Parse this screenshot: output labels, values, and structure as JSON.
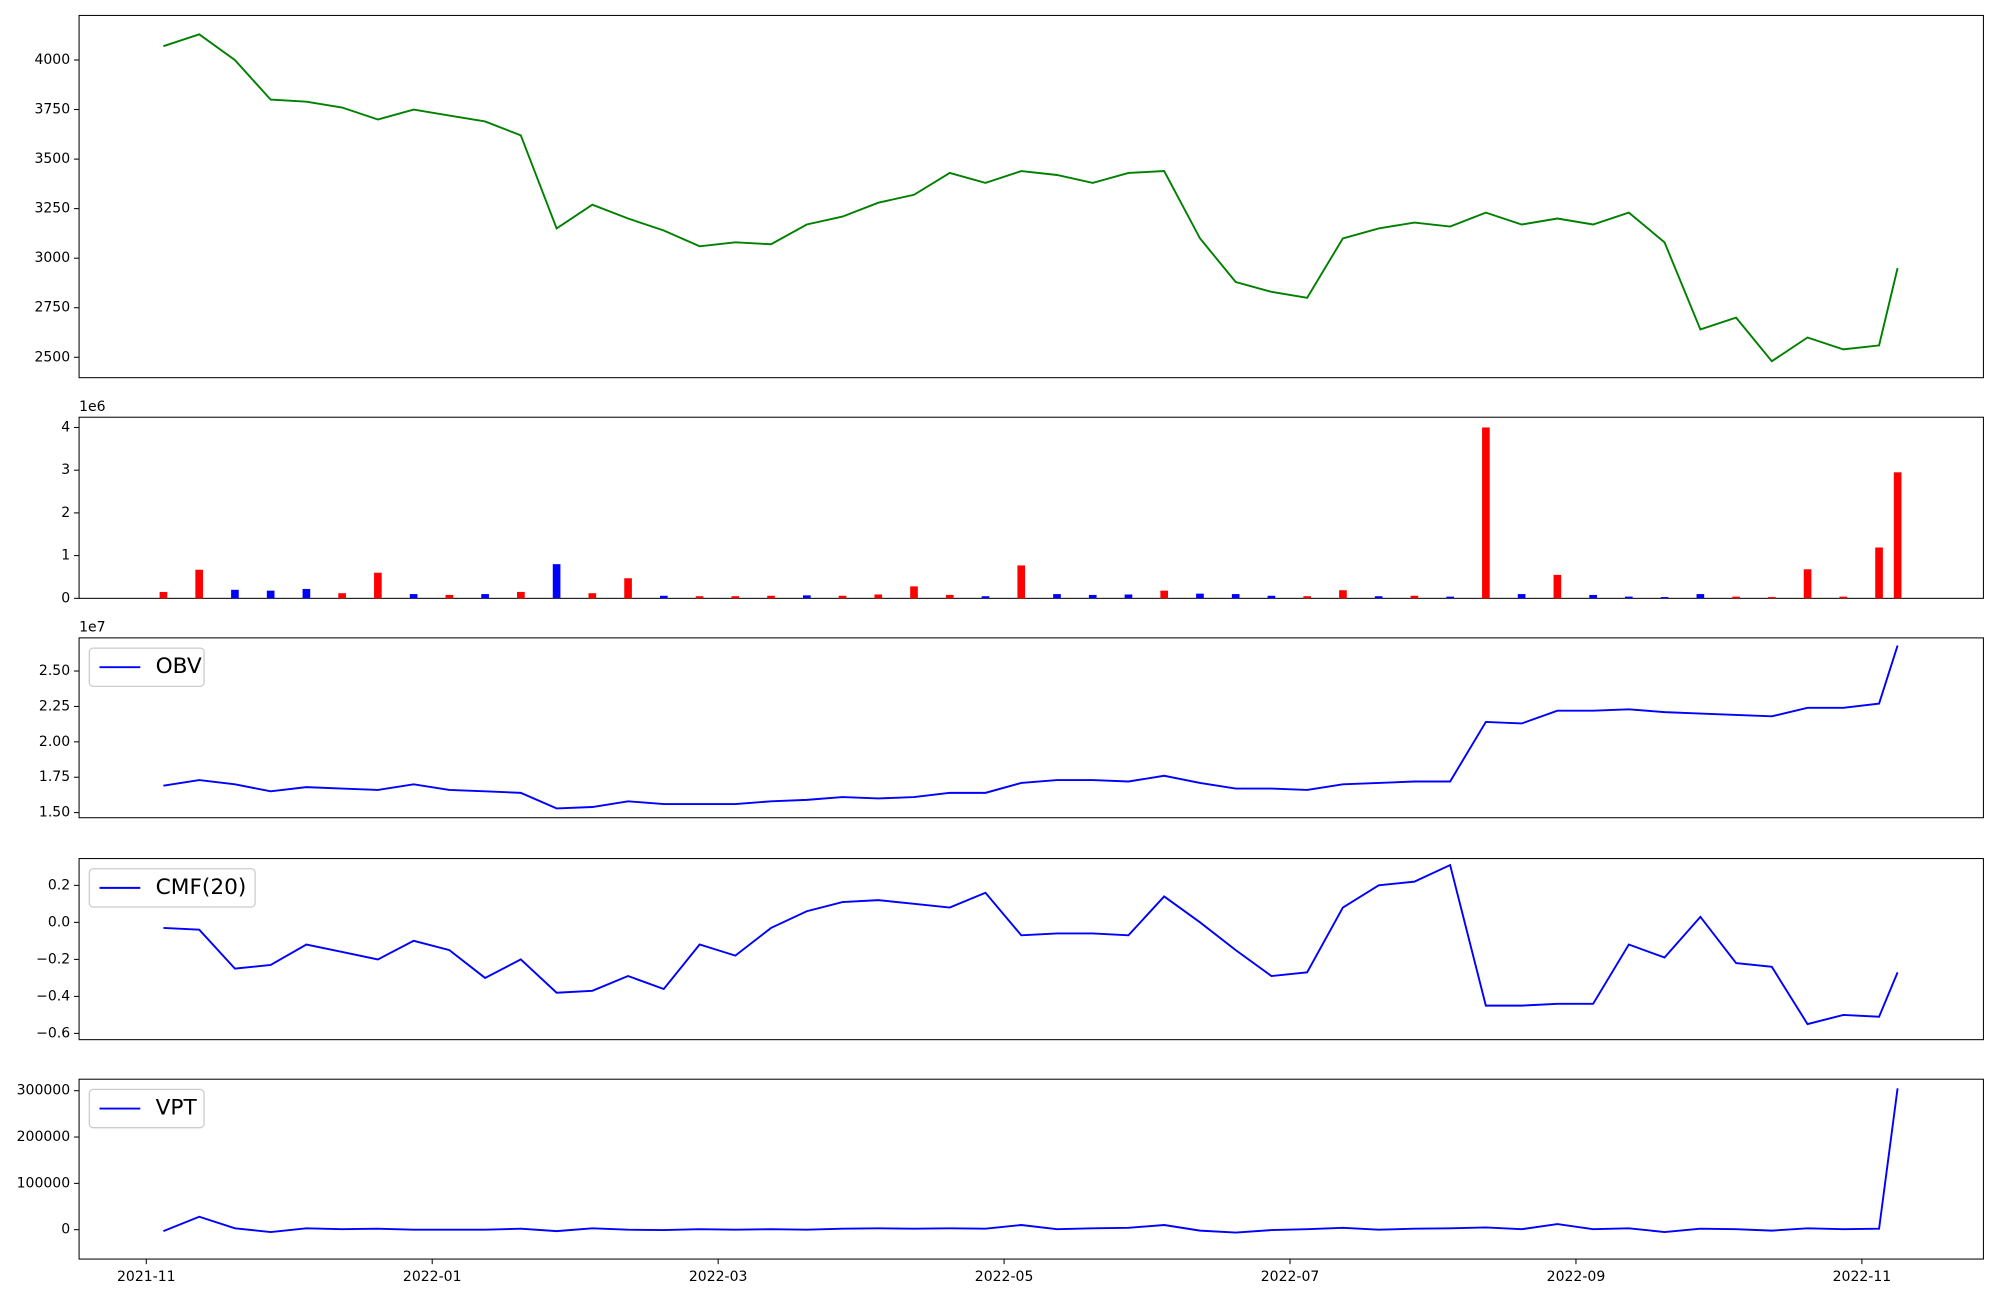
{
  "chart_data": [
    {
      "type": "line",
      "color": "green",
      "x": [
        0.12,
        0.37,
        0.62,
        0.87,
        1.12,
        1.37,
        1.62,
        1.87,
        2.12,
        2.37,
        2.62,
        2.87,
        3.12,
        3.37,
        3.62,
        3.87,
        4.12,
        4.37,
        4.62,
        4.87,
        5.12,
        5.37,
        5.62,
        5.87,
        6.12,
        6.37,
        6.62,
        6.87,
        7.12,
        7.37,
        7.62,
        7.87,
        8.12,
        8.37,
        8.62,
        8.87,
        9.12,
        9.37,
        9.62,
        9.87,
        10.12,
        10.37,
        10.62,
        10.87,
        11.12,
        11.37,
        11.62,
        11.87,
        12.12,
        12.25
      ],
      "values": [
        4070,
        4130,
        4000,
        3800,
        3790,
        3760,
        3700,
        3750,
        3720,
        3690,
        3620,
        3150,
        3270,
        3200,
        3140,
        3060,
        3080,
        3070,
        3170,
        3210,
        3280,
        3320,
        3430,
        3380,
        3440,
        3420,
        3380,
        3430,
        3440,
        3100,
        2880,
        2830,
        2800,
        3100,
        3150,
        3180,
        3160,
        3230,
        3170,
        3200,
        3170,
        3230,
        3080,
        2640,
        2700,
        2480,
        2600,
        2540,
        2560,
        2950
      ],
      "xlim": [
        -0.47,
        12.85
      ],
      "ylim": [
        2397,
        4225
      ],
      "yticks": [
        2500,
        2750,
        3000,
        3250,
        3500,
        3750,
        4000
      ]
    },
    {
      "type": "bar",
      "offset_text": "1e6",
      "x": [
        0.12,
        0.37,
        0.62,
        0.87,
        1.12,
        1.37,
        1.62,
        1.87,
        2.12,
        2.37,
        2.62,
        2.87,
        3.12,
        3.37,
        3.62,
        3.87,
        4.12,
        4.37,
        4.62,
        4.87,
        5.12,
        5.37,
        5.62,
        5.87,
        6.12,
        6.37,
        6.62,
        6.87,
        7.12,
        7.37,
        7.62,
        7.87,
        8.12,
        8.37,
        8.62,
        8.87,
        9.12,
        9.37,
        9.62,
        9.87,
        10.12,
        10.37,
        10.62,
        10.87,
        11.12,
        11.37,
        11.62,
        11.87,
        12.12,
        12.25
      ],
      "values": [
        150000,
        670000,
        200000,
        180000,
        220000,
        120000,
        600000,
        100000,
        80000,
        100000,
        150000,
        800000,
        120000,
        470000,
        60000,
        50000,
        50000,
        60000,
        70000,
        60000,
        90000,
        280000,
        80000,
        50000,
        770000,
        100000,
        80000,
        90000,
        180000,
        110000,
        100000,
        60000,
        50000,
        190000,
        50000,
        60000,
        40000,
        4000000,
        100000,
        550000,
        80000,
        40000,
        30000,
        100000,
        40000,
        30000,
        680000,
        40000,
        1190000,
        2950000
      ],
      "colors": [
        "red",
        "red",
        "blue",
        "blue",
        "blue",
        "red",
        "red",
        "blue",
        "red",
        "blue",
        "red",
        "blue",
        "red",
        "red",
        "blue",
        "red",
        "red",
        "red",
        "blue",
        "red",
        "red",
        "red",
        "red",
        "blue",
        "red",
        "blue",
        "blue",
        "blue",
        "red",
        "blue",
        "blue",
        "blue",
        "red",
        "red",
        "blue",
        "red",
        "blue",
        "red",
        "blue",
        "red",
        "blue",
        "blue",
        "blue",
        "blue",
        "red",
        "red",
        "red",
        "red",
        "red",
        "red"
      ],
      "xlim": [
        -0.47,
        12.85
      ],
      "ylim": [
        0,
        4240000
      ],
      "yticks": [
        {
          "value": 0,
          "label": "0"
        },
        {
          "value": 1000000,
          "label": "1"
        },
        {
          "value": 2000000,
          "label": "2"
        },
        {
          "value": 3000000,
          "label": "3"
        },
        {
          "value": 4000000,
          "label": "4"
        }
      ]
    },
    {
      "type": "line",
      "offset_text": "1e7",
      "legend": "upper left",
      "x": [
        0.12,
        0.37,
        0.62,
        0.87,
        1.12,
        1.37,
        1.62,
        1.87,
        2.12,
        2.37,
        2.62,
        2.87,
        3.12,
        3.37,
        3.62,
        3.87,
        4.12,
        4.37,
        4.62,
        4.87,
        5.12,
        5.37,
        5.62,
        5.87,
        6.12,
        6.37,
        6.62,
        6.87,
        7.12,
        7.37,
        7.62,
        7.87,
        8.12,
        8.37,
        8.62,
        8.87,
        9.12,
        9.37,
        9.62,
        9.87,
        10.12,
        10.37,
        10.62,
        10.87,
        11.12,
        11.37,
        11.62,
        11.87,
        12.12,
        12.25
      ],
      "series": [
        {
          "name": "OBV",
          "color": "blue",
          "values": [
            16900000,
            17300000,
            17000000,
            16500000,
            16800000,
            16700000,
            16600000,
            17000000,
            16600000,
            16500000,
            16400000,
            15300000,
            15400000,
            15800000,
            15600000,
            15600000,
            15600000,
            15800000,
            15900000,
            16100000,
            16000000,
            16100000,
            16400000,
            16400000,
            17100000,
            17300000,
            17300000,
            17200000,
            17600000,
            17100000,
            16700000,
            16700000,
            16600000,
            17000000,
            17100000,
            17200000,
            17200000,
            21400000,
            21300000,
            22200000,
            22200000,
            22300000,
            22100000,
            22000000,
            21900000,
            21800000,
            22400000,
            22400000,
            22700000,
            26800000
          ]
        }
      ],
      "xlim": [
        -0.47,
        12.85
      ],
      "ylim": [
        14640000,
        27340000
      ],
      "yticks": [
        {
          "value": 15000000,
          "label": "1.50"
        },
        {
          "value": 17500000,
          "label": "1.75"
        },
        {
          "value": 20000000,
          "label": "2.00"
        },
        {
          "value": 22500000,
          "label": "2.25"
        },
        {
          "value": 25000000,
          "label": "2.50"
        }
      ]
    },
    {
      "type": "line",
      "legend": "upper left",
      "x": [
        0.12,
        0.37,
        0.62,
        0.87,
        1.12,
        1.37,
        1.62,
        1.87,
        2.12,
        2.37,
        2.62,
        2.87,
        3.12,
        3.37,
        3.62,
        3.87,
        4.12,
        4.37,
        4.62,
        4.87,
        5.12,
        5.37,
        5.62,
        5.87,
        6.12,
        6.37,
        6.62,
        6.87,
        7.12,
        7.37,
        7.62,
        7.87,
        8.12,
        8.37,
        8.62,
        8.87,
        9.12,
        9.37,
        9.62,
        9.87,
        10.12,
        10.37,
        10.62,
        10.87,
        11.12,
        11.37,
        11.62,
        11.87,
        12.12,
        12.25
      ],
      "series": [
        {
          "name": "CMF(20)",
          "color": "blue",
          "values": [
            -0.03,
            -0.04,
            -0.25,
            -0.23,
            -0.12,
            -0.16,
            -0.2,
            -0.1,
            -0.15,
            -0.3,
            -0.2,
            -0.38,
            -0.37,
            -0.29,
            -0.36,
            -0.12,
            -0.18,
            -0.03,
            0.06,
            0.11,
            0.12,
            0.1,
            0.08,
            0.16,
            -0.07,
            -0.06,
            -0.06,
            -0.07,
            0.14,
            0.0,
            -0.15,
            -0.29,
            -0.27,
            0.08,
            0.2,
            0.22,
            0.31,
            -0.45,
            -0.45,
            -0.44,
            -0.44,
            -0.12,
            -0.19,
            0.03,
            -0.22,
            -0.24,
            -0.55,
            -0.5,
            -0.51,
            -0.27
          ]
        }
      ],
      "xlim": [
        -0.47,
        12.85
      ],
      "ylim": [
        -0.634,
        0.345
      ],
      "yticks": [
        {
          "value": -0.6,
          "label": "−0.6"
        },
        {
          "value": -0.4,
          "label": "−0.4"
        },
        {
          "value": -0.2,
          "label": "−0.2"
        },
        {
          "value": 0,
          "label": "0.0"
        },
        0.2
      ]
    },
    {
      "type": "line",
      "legend": "upper left",
      "x": [
        0.12,
        0.37,
        0.62,
        0.87,
        1.12,
        1.37,
        1.62,
        1.87,
        2.12,
        2.37,
        2.62,
        2.87,
        3.12,
        3.37,
        3.62,
        3.87,
        4.12,
        4.37,
        4.62,
        4.87,
        5.12,
        5.37,
        5.62,
        5.87,
        6.12,
        6.37,
        6.62,
        6.87,
        7.12,
        7.37,
        7.62,
        7.87,
        8.12,
        8.37,
        8.62,
        8.87,
        9.12,
        9.37,
        9.62,
        9.87,
        10.12,
        10.37,
        10.62,
        10.87,
        11.12,
        11.37,
        11.62,
        11.87,
        12.12,
        12.25
      ],
      "series": [
        {
          "name": "VPT",
          "color": "blue",
          "values": [
            -3000,
            28000,
            3000,
            -5000,
            3000,
            1000,
            2000,
            0,
            0,
            0,
            2000,
            -3000,
            3000,
            0,
            -1000,
            1000,
            0,
            1000,
            0,
            2000,
            3000,
            2000,
            3000,
            2000,
            10000,
            1000,
            3000,
            4000,
            10000,
            -2000,
            -6000,
            -1000,
            1000,
            4000,
            0,
            2000,
            3000,
            5000,
            1000,
            12000,
            1000,
            3000,
            -5000,
            2000,
            1000,
            -2000,
            3000,
            1000,
            2000,
            305000
          ]
        }
      ],
      "xlim": [
        -0.47,
        12.85
      ],
      "ylim": [
        -63400,
        324800
      ],
      "yticks": [
        0,
        100000,
        200000,
        300000
      ],
      "xticks": [
        {
          "value": 0,
          "label": "2021-11"
        },
        {
          "value": 2,
          "label": "2022-01"
        },
        {
          "value": 4,
          "label": "2022-03"
        },
        {
          "value": 6,
          "label": "2022-05"
        },
        {
          "value": 8,
          "label": "2022-07"
        },
        {
          "value": 10,
          "label": "2022-09"
        },
        {
          "value": 12,
          "label": "2022-11"
        }
      ]
    }
  ]
}
